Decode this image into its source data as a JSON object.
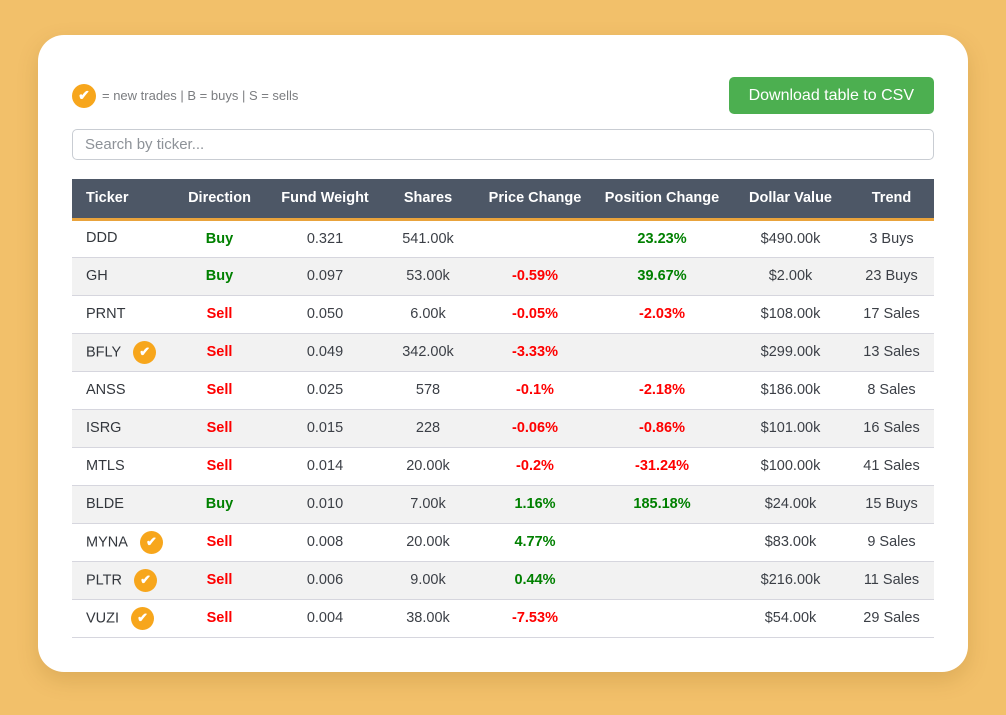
{
  "colors": {
    "page_background": "#f2c06a",
    "card_background": "#ffffff",
    "badge_orange": "#f7a61c",
    "header_background": "#4d5766",
    "header_underline": "#e9a33c",
    "buy_green": "#008000",
    "sell_red": "#fe0000",
    "button_green": "#4caf50"
  },
  "legend": {
    "check_icon": "checkmark-in-orange-circle",
    "text": "= new trades | B = buys | S = sells"
  },
  "download_button": {
    "label": "Download table to CSV"
  },
  "search": {
    "placeholder": "Search by ticker..."
  },
  "table": {
    "headers": [
      "Ticker",
      "Direction",
      "Fund Weight",
      "Shares",
      "Price Change",
      "Position Change",
      "Dollar Value",
      "Trend"
    ],
    "rows": [
      {
        "ticker": "DDD",
        "new_trade": false,
        "direction": "Buy",
        "fund_weight": "0.321",
        "shares": "541.00k",
        "price_change": "",
        "position_change": "23.23%",
        "dollar_value": "$490.00k",
        "trend": "3 Buys"
      },
      {
        "ticker": "GH",
        "new_trade": false,
        "direction": "Buy",
        "fund_weight": "0.097",
        "shares": "53.00k",
        "price_change": "-0.59%",
        "position_change": "39.67%",
        "dollar_value": "$2.00k",
        "trend": "23 Buys"
      },
      {
        "ticker": "PRNT",
        "new_trade": false,
        "direction": "Sell",
        "fund_weight": "0.050",
        "shares": "6.00k",
        "price_change": "-0.05%",
        "position_change": "-2.03%",
        "dollar_value": "$108.00k",
        "trend": "17 Sales"
      },
      {
        "ticker": "BFLY",
        "new_trade": true,
        "direction": "Sell",
        "fund_weight": "0.049",
        "shares": "342.00k",
        "price_change": "-3.33%",
        "position_change": "",
        "dollar_value": "$299.00k",
        "trend": "13 Sales"
      },
      {
        "ticker": "ANSS",
        "new_trade": false,
        "direction": "Sell",
        "fund_weight": "0.025",
        "shares": "578",
        "price_change": "-0.1%",
        "position_change": "-2.18%",
        "dollar_value": "$186.00k",
        "trend": "8 Sales"
      },
      {
        "ticker": "ISRG",
        "new_trade": false,
        "direction": "Sell",
        "fund_weight": "0.015",
        "shares": "228",
        "price_change": "-0.06%",
        "position_change": "-0.86%",
        "dollar_value": "$101.00k",
        "trend": "16 Sales"
      },
      {
        "ticker": "MTLS",
        "new_trade": false,
        "direction": "Sell",
        "fund_weight": "0.014",
        "shares": "20.00k",
        "price_change": "-0.2%",
        "position_change": "-31.24%",
        "dollar_value": "$100.00k",
        "trend": "41 Sales"
      },
      {
        "ticker": "BLDE",
        "new_trade": false,
        "direction": "Buy",
        "fund_weight": "0.010",
        "shares": "7.00k",
        "price_change": "1.16%",
        "position_change": "185.18%",
        "dollar_value": "$24.00k",
        "trend": "15 Buys"
      },
      {
        "ticker": "MYNA",
        "new_trade": true,
        "direction": "Sell",
        "fund_weight": "0.008",
        "shares": "20.00k",
        "price_change": "4.77%",
        "position_change": "",
        "dollar_value": "$83.00k",
        "trend": "9 Sales"
      },
      {
        "ticker": "PLTR",
        "new_trade": true,
        "direction": "Sell",
        "fund_weight": "0.006",
        "shares": "9.00k",
        "price_change": "0.44%",
        "position_change": "",
        "dollar_value": "$216.00k",
        "trend": "11 Sales"
      },
      {
        "ticker": "VUZI",
        "new_trade": true,
        "direction": "Sell",
        "fund_weight": "0.004",
        "shares": "38.00k",
        "price_change": "-7.53%",
        "position_change": "",
        "dollar_value": "$54.00k",
        "trend": "29 Sales"
      }
    ]
  }
}
